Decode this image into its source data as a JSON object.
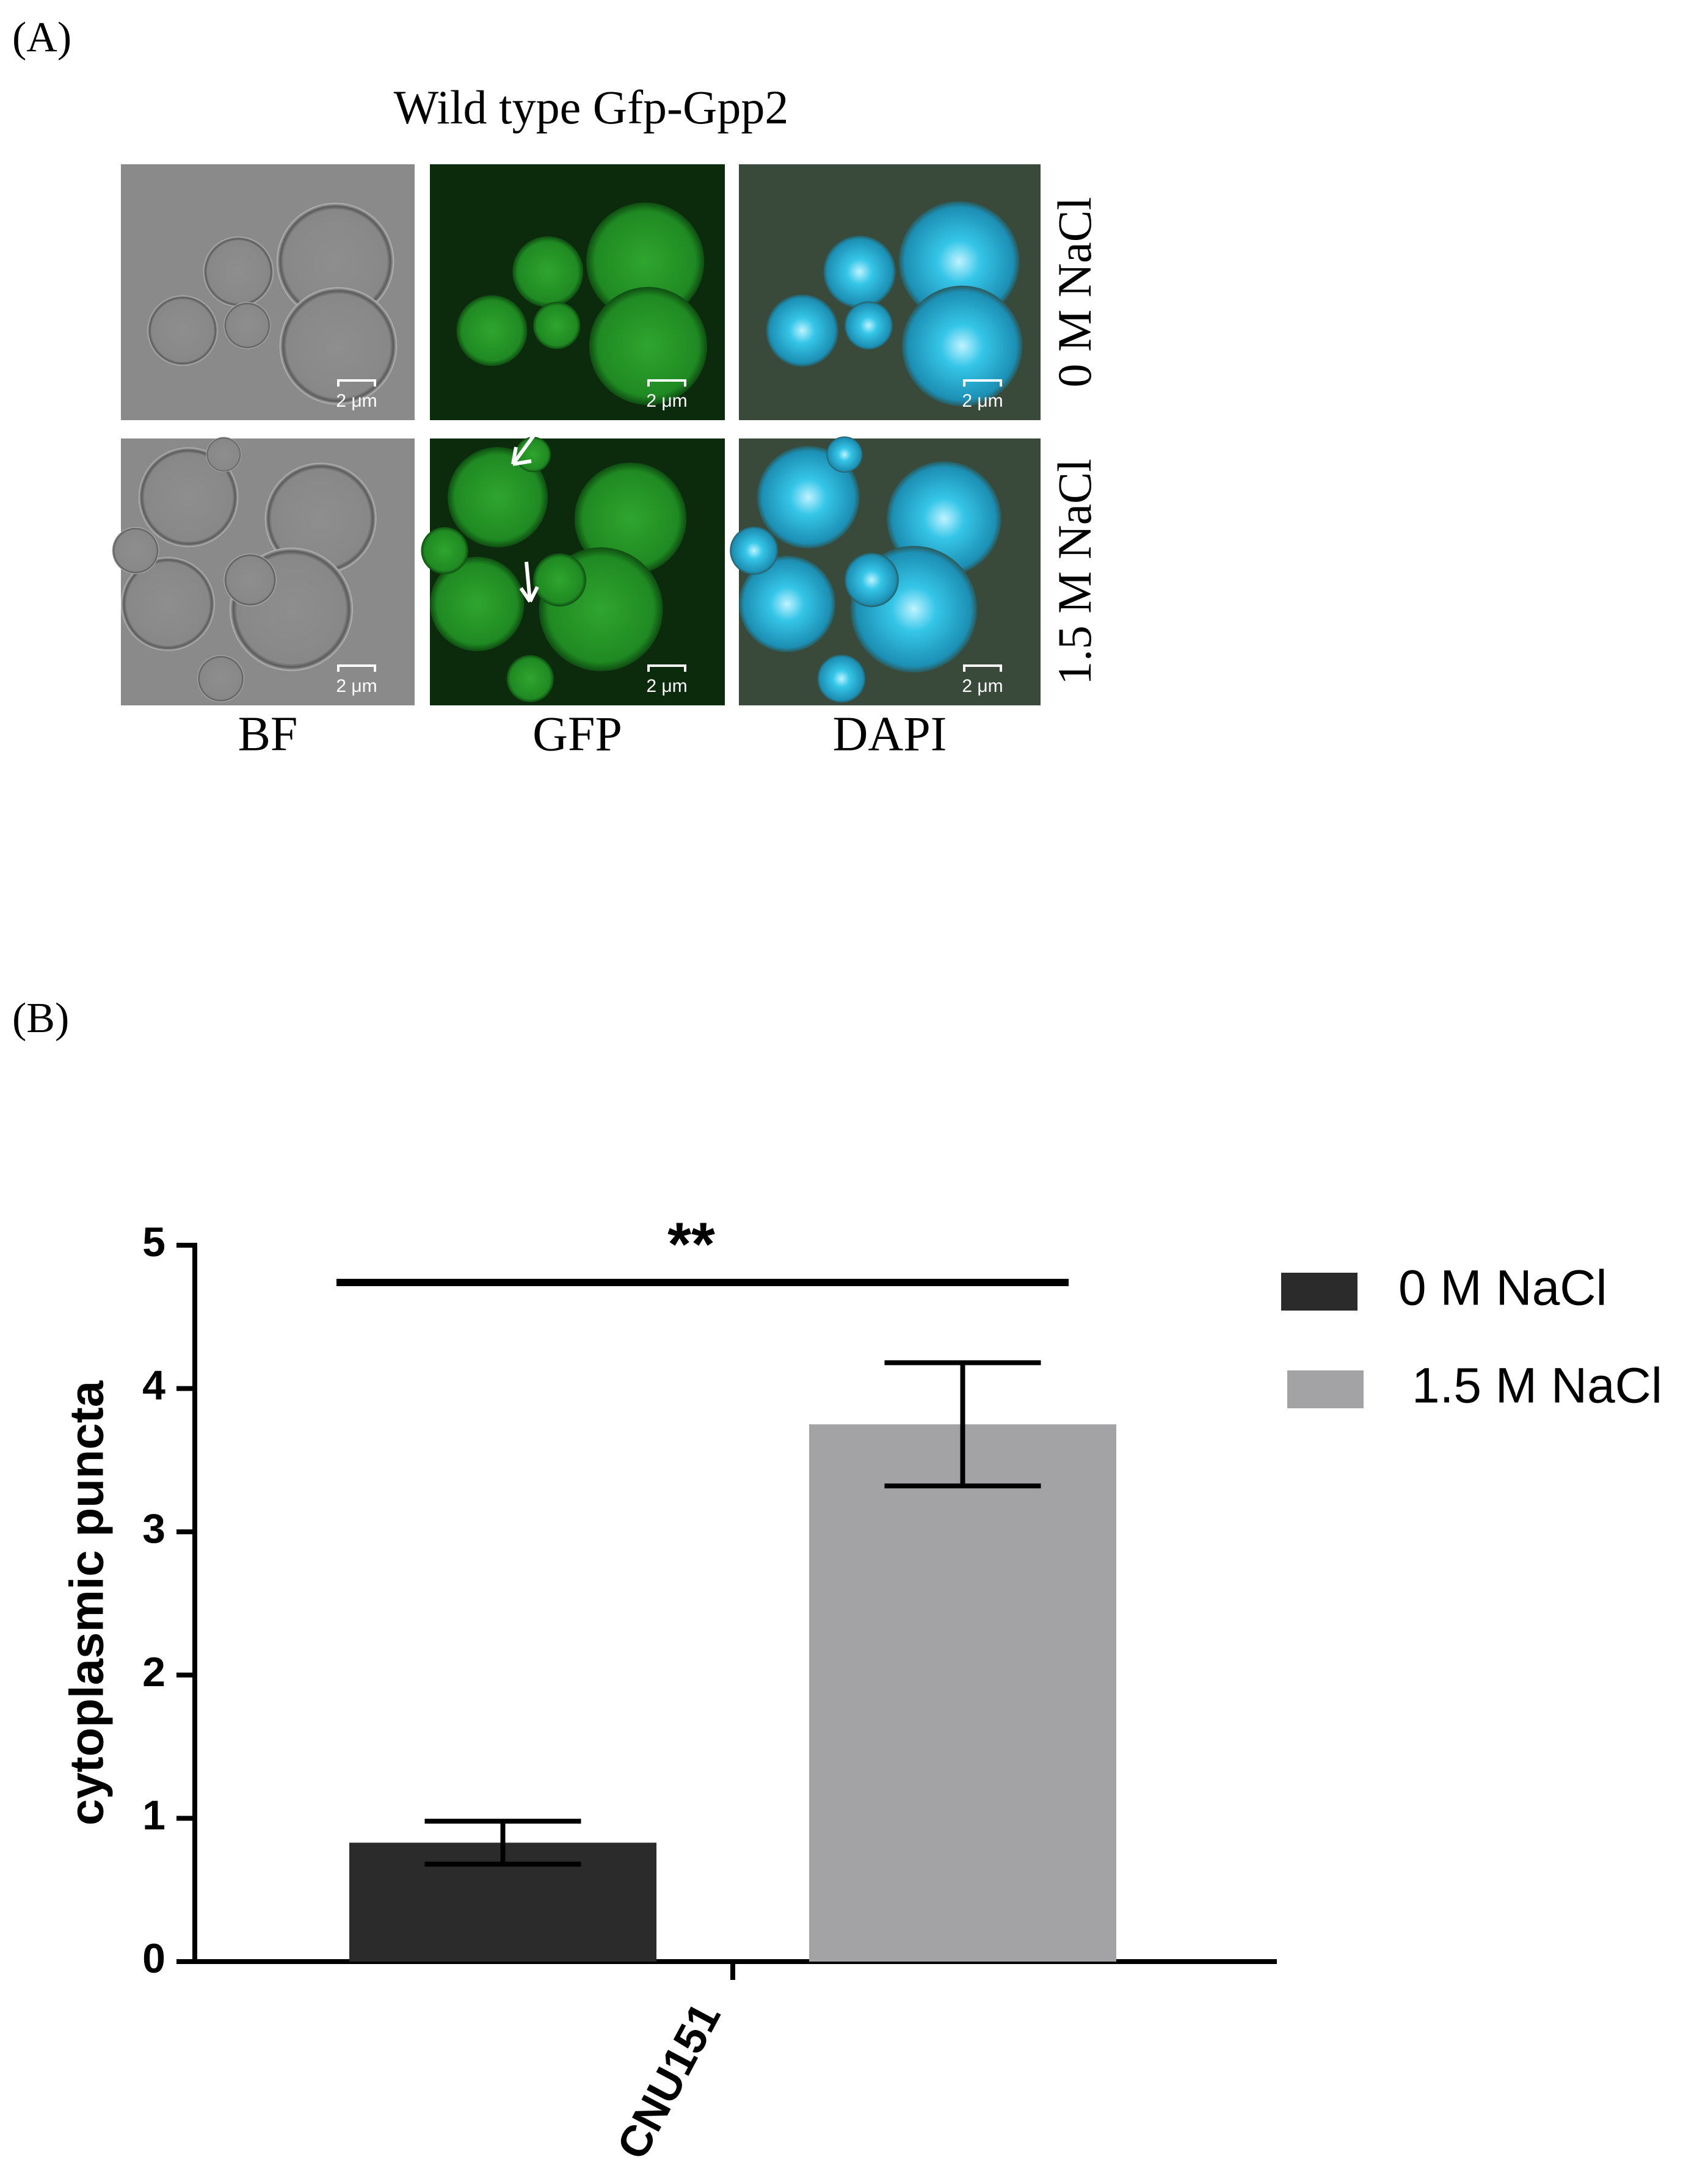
{
  "panel_a": {
    "label": "(A)",
    "title": "Wild type Gfp-Gpp2",
    "columns": [
      "BF",
      "GFP",
      "DAPI"
    ],
    "rows": [
      "0 M NaCl",
      "1.5 M NaCl"
    ],
    "scale_bar": "2 μm"
  },
  "panel_b_label": "(B)",
  "chart_data": {
    "type": "bar",
    "categories": [
      "CNU151"
    ],
    "series": [
      {
        "name": "0 M NaCl",
        "color": "#2b2b2b",
        "values": [
          0.83
        ],
        "errors": [
          0.15
        ]
      },
      {
        "name": "1.5 M NaCl",
        "color": "#a3a3a6",
        "values": [
          3.75
        ],
        "errors": [
          0.43
        ]
      }
    ],
    "ylabel": "cytoplasmic puncta",
    "ylim": [
      0,
      5
    ],
    "yticks": [
      0,
      1,
      2,
      3,
      4,
      5
    ],
    "annotation": "**"
  }
}
